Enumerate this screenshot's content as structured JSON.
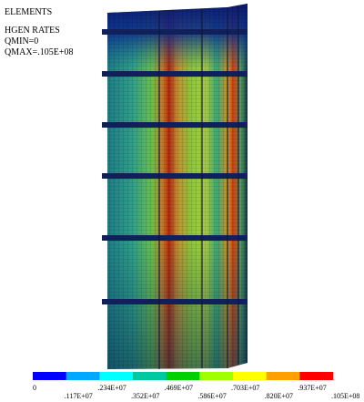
{
  "header": {
    "lines": [
      "ELEMENTS",
      "HGEN RATES",
      "QMIN=0",
      "QMAX=.105E+08"
    ]
  },
  "legend": {
    "colors": [
      "#0000ff",
      "#00a8ff",
      "#00ffff",
      "#00c8a0",
      "#00d000",
      "#a0ff00",
      "#ffff00",
      "#ffa000",
      "#ff0000"
    ],
    "labels": [
      "0",
      ".117E+07",
      ".234E+07",
      ".352E+07",
      ".469E+07",
      ".586E+07",
      ".703E+07",
      ".820E+07",
      ".937E+07",
      ".105E+08"
    ]
  }
}
